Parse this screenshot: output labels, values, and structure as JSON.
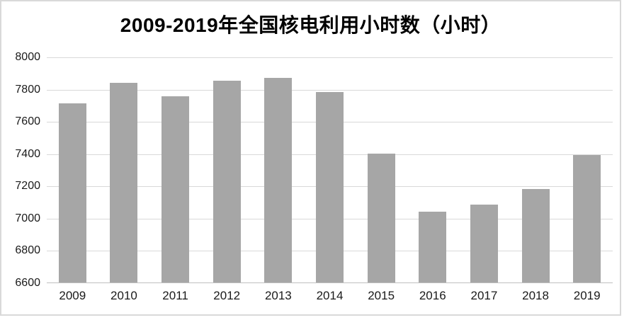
{
  "chart_data": {
    "type": "bar",
    "title": "2009-2019年全国核电利用小时数（小时）",
    "categories": [
      "2009",
      "2010",
      "2011",
      "2012",
      "2013",
      "2014",
      "2015",
      "2016",
      "2017",
      "2018",
      "2019"
    ],
    "values": [
      7716,
      7840,
      7759,
      7855,
      7874,
      7787,
      7403,
      7042,
      7089,
      7184,
      7394
    ],
    "xlabel": "",
    "ylabel": "",
    "ylim": [
      6600,
      8000
    ],
    "ytick_step": 200,
    "yticks": [
      "8000",
      "7800",
      "7600",
      "7400",
      "7200",
      "7000",
      "6800",
      "6600"
    ],
    "grid": true,
    "legend": false,
    "colors": {
      "bar": "#a6a6a6",
      "gridline": "#d9d9d9",
      "axis_line": "#bfbfbf",
      "tick_text": "#1a1a1a",
      "title_text": "#000000",
      "frame_border": "#d9d9d9",
      "background": "#ffffff"
    }
  }
}
